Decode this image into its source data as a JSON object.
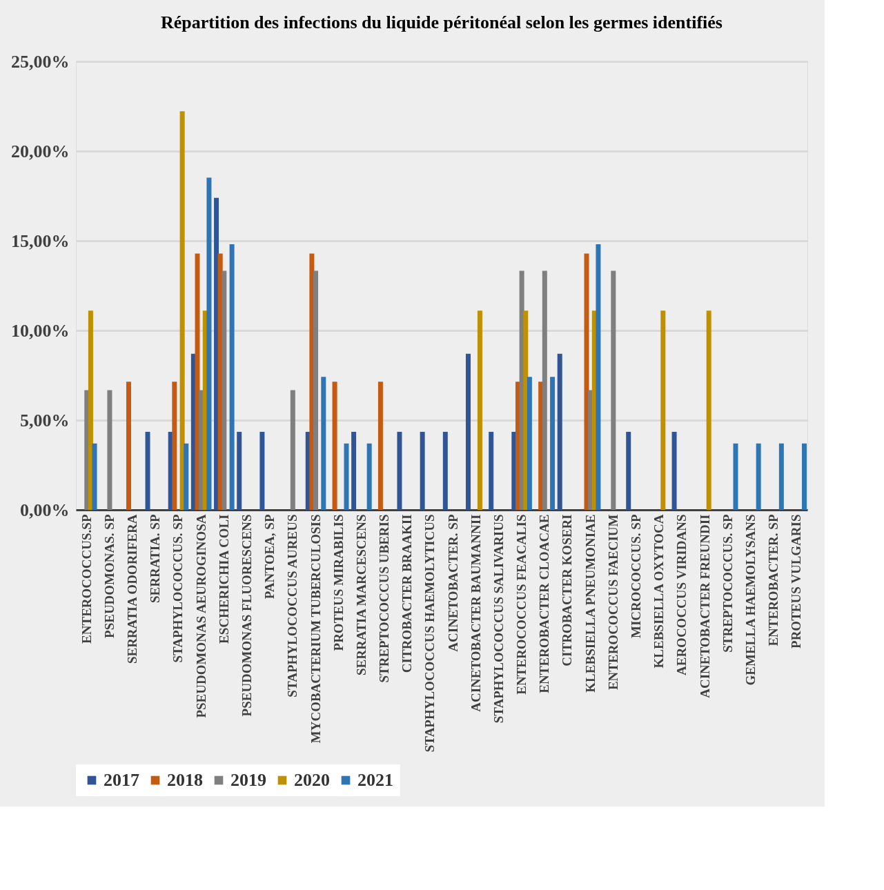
{
  "chart_data": {
    "type": "bar",
    "title": "Répartition des infections du liquide péritonéal selon les germes identifiés",
    "categories": [
      "ENTEROCOCCUS.SP",
      "PSEUDOMONAS. SP",
      "SERRATIA ODORIFERA",
      "SERRATIA. SP",
      "STAPHYLOCOCCUS. SP",
      "PSEUDOMONAS AEUROGINOSA",
      "ESCHERICHIA COLI",
      "PSEUDOMONAS FLUORESCENS",
      "PANTOEA, SP",
      "STAPHYLOCOCCUS AUREUS",
      "MYCOBACTERIUM TUBERCULOSIS",
      "PROTEUS MIRABILIS",
      "SERRATIA MARCESCENS",
      "STREPTOCOCCUS UBERIS",
      "CITROBACTER BRAAKII",
      "STAPHYLOCOCCUS HAEMOLYTICUS",
      "ACINETOBACTER. SP",
      "ACINETOBACTER BAUMANNII",
      "STAPHYLOCOCCUS SALIVARIUS",
      "ENTEROCOCCUS FEACALIS",
      "ENTEROBACTER CLOACAE",
      "CITROBACTER KOSERI",
      "KLEBSIELLA PNEUMONIAE",
      "ENTEROCOCCUS FAECIUM",
      "MICROCOCCUS. SP",
      "KLEBSIELLA OXYTOCA",
      "AEROCOCCUS VIRIDANS",
      "ACINETOBACTER FREUNDII",
      "STREPTOCOCCUS. SP",
      "GEMELLA HAEMOLYSANS",
      "ENTEROBACTER. SP",
      "PROTEUS VULGARIS"
    ],
    "series": [
      {
        "name": "2017",
        "color": "#2f5597",
        "values": [
          0,
          0,
          0,
          4.35,
          4.35,
          8.7,
          17.39,
          4.35,
          4.35,
          0,
          4.35,
          0,
          4.35,
          0,
          4.35,
          4.35,
          4.35,
          8.7,
          4.35,
          4.35,
          0,
          8.7,
          0,
          0,
          4.35,
          0,
          4.35,
          0,
          0,
          0,
          0,
          0
        ]
      },
      {
        "name": "2018",
        "color": "#c55a11",
        "values": [
          0,
          0,
          7.14,
          0,
          7.14,
          14.29,
          14.29,
          0,
          0,
          0,
          14.29,
          7.14,
          0,
          7.14,
          0,
          0,
          0,
          0,
          0,
          7.14,
          7.14,
          0,
          14.29,
          0,
          0,
          0,
          0,
          0,
          0,
          0,
          0,
          0
        ]
      },
      {
        "name": "2019",
        "color": "#7f7f7f",
        "values": [
          6.67,
          6.67,
          0,
          0,
          0,
          6.67,
          13.33,
          0,
          0,
          6.67,
          13.33,
          0,
          0,
          0,
          0,
          0,
          0,
          0,
          0,
          13.33,
          13.33,
          0,
          6.67,
          13.33,
          0,
          0,
          0,
          0,
          0,
          0,
          0,
          0
        ]
      },
      {
        "name": "2020",
        "color": "#bf9000",
        "values": [
          11.11,
          0,
          0,
          0,
          22.22,
          11.11,
          0,
          0,
          0,
          0,
          0,
          0,
          0,
          0,
          0,
          0,
          0,
          11.11,
          0,
          11.11,
          0,
          0,
          11.11,
          0,
          0,
          11.11,
          0,
          11.11,
          0,
          0,
          0,
          0
        ]
      },
      {
        "name": "2021",
        "color": "#2e75b6",
        "values": [
          3.7,
          0,
          0,
          0,
          3.7,
          18.52,
          14.81,
          0,
          0,
          0,
          7.41,
          3.7,
          3.7,
          0,
          0,
          0,
          0,
          0,
          0,
          7.41,
          7.41,
          0,
          14.81,
          0,
          0,
          0,
          0,
          0,
          3.7,
          3.7,
          3.7,
          3.7
        ]
      }
    ],
    "ylim": [
      0,
      25
    ],
    "yticks": [
      {
        "value": 0,
        "label": "0,00%"
      },
      {
        "value": 5,
        "label": "5,00%"
      },
      {
        "value": 10,
        "label": "10,00%"
      },
      {
        "value": 15,
        "label": "15,00%"
      },
      {
        "value": 20,
        "label": "20,00%"
      },
      {
        "value": 25,
        "label": "25,00%"
      }
    ],
    "grid": "y",
    "legend": "bottom"
  }
}
